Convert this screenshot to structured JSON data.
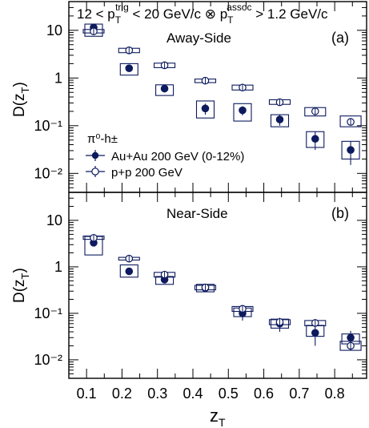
{
  "chart_data": [
    {
      "type": "scatter",
      "panel_label": "(a)",
      "title": "12 < p_T^trig < 20 GeV/c ⊗ p_T^assoc > 1.2 GeV/c",
      "annotation": "Away-Side",
      "xlabel": "z_T",
      "ylabel": "D(z_T)",
      "log_y": true,
      "ylim": [
        0.004,
        40
      ],
      "xlim": [
        0.05,
        0.89
      ],
      "legend_title": "π⁰-h±",
      "legend_placement": "lower-left",
      "series": [
        {
          "name": "Au+Au 200 GeV (0-12%)",
          "marker": "filled-circle",
          "color": "#0d1a5e",
          "x": [
            0.12,
            0.22,
            0.32,
            0.435,
            0.54,
            0.645,
            0.745,
            0.845
          ],
          "y": [
            11.5,
            1.6,
            0.6,
            0.23,
            0.21,
            0.135,
            0.053,
            0.031
          ],
          "err_low": [
            2.0,
            0.25,
            0.1,
            0.06,
            0.045,
            0.035,
            0.022,
            0.016
          ],
          "err_high": [
            2.0,
            0.25,
            0.1,
            0.06,
            0.045,
            0.035,
            0.022,
            0.016
          ],
          "sys_low": [
            7.5,
            1.15,
            0.43,
            0.145,
            0.125,
            0.095,
            0.035,
            0.02
          ],
          "sys_high": [
            13.5,
            2.0,
            0.72,
            0.33,
            0.29,
            0.17,
            0.075,
            0.047
          ]
        },
        {
          "name": "p+p 200 GeV",
          "marker": "open-circle",
          "color": "#0d1a5e",
          "x": [
            0.12,
            0.22,
            0.32,
            0.435,
            0.54,
            0.645,
            0.745,
            0.845
          ],
          "y": [
            9.5,
            3.8,
            1.85,
            0.88,
            0.63,
            0.31,
            0.2,
            0.12
          ],
          "err_low": [
            0.3,
            0.15,
            0.07,
            0.04,
            0.03,
            0.02,
            0.015,
            0.01
          ],
          "err_high": [
            0.3,
            0.15,
            0.07,
            0.04,
            0.03,
            0.02,
            0.015,
            0.01
          ],
          "sys_low": [
            8.8,
            3.4,
            1.65,
            0.8,
            0.56,
            0.28,
            0.16,
            0.095
          ],
          "sys_high": [
            10.4,
            4.2,
            2.05,
            0.95,
            0.71,
            0.35,
            0.24,
            0.16
          ]
        }
      ]
    },
    {
      "type": "scatter",
      "panel_label": "(b)",
      "annotation": "Near-Side",
      "xlabel": "z_T",
      "ylabel": "D(z_T)",
      "log_y": true,
      "ylim": [
        0.004,
        40
      ],
      "xlim": [
        0.05,
        0.89
      ],
      "series": [
        {
          "name": "Au+Au 200 GeV (0-12%)",
          "marker": "filled-circle",
          "color": "#0d1a5e",
          "x": [
            0.12,
            0.22,
            0.32,
            0.435,
            0.54,
            0.645,
            0.745,
            0.845
          ],
          "y": [
            3.3,
            0.8,
            0.53,
            0.35,
            0.1,
            0.06,
            0.038,
            0.03
          ],
          "err_low": [
            0.4,
            0.12,
            0.06,
            0.05,
            0.03,
            0.02,
            0.018,
            0.012
          ],
          "err_high": [
            0.4,
            0.12,
            0.06,
            0.05,
            0.03,
            0.02,
            0.018,
            0.012
          ],
          "sys_low": [
            1.8,
            0.6,
            0.42,
            0.29,
            0.085,
            0.048,
            0.032,
            0.022
          ],
          "sys_high": [
            4.5,
            1.1,
            0.62,
            0.42,
            0.13,
            0.075,
            0.055,
            0.036
          ]
        },
        {
          "name": "p+p 200 GeV",
          "marker": "open-circle",
          "color": "#0d1a5e",
          "x": [
            0.12,
            0.22,
            0.32,
            0.435,
            0.54,
            0.645,
            0.745,
            0.845
          ],
          "y": [
            4.2,
            1.5,
            0.68,
            0.36,
            0.125,
            0.065,
            0.062,
            0.02
          ],
          "err_low": [
            0.15,
            0.08,
            0.04,
            0.03,
            0.012,
            0.008,
            0.008,
            0.004
          ],
          "err_high": [
            0.15,
            0.08,
            0.04,
            0.03,
            0.012,
            0.008,
            0.008,
            0.004
          ],
          "sys_low": [
            3.9,
            1.4,
            0.6,
            0.32,
            0.11,
            0.057,
            0.054,
            0.016
          ],
          "sys_high": [
            4.6,
            1.6,
            0.76,
            0.4,
            0.14,
            0.073,
            0.07,
            0.025
          ]
        }
      ]
    }
  ],
  "x_tick_labels": [
    "0.1",
    "0.2",
    "0.3",
    "0.4",
    "0.5",
    "0.6",
    "0.7",
    "0.8"
  ],
  "x_tick_values": [
    0.1,
    0.2,
    0.3,
    0.4,
    0.5,
    0.6,
    0.7,
    0.8
  ],
  "y_tick_labels": [
    "10⁻²",
    "10⁻¹",
    "1",
    "10"
  ],
  "y_tick_values": [
    0.01,
    0.1,
    1,
    10
  ],
  "text": {
    "title_a": "12 < p",
    "title_b": "T",
    "title_c": "trig",
    "title_d": " < 20 GeV/c ⊗ p",
    "title_e": "T",
    "title_f": "assoc",
    "title_g": " > 1.2 GeV/c",
    "ylabel_main": "D(z",
    "ylabel_sub": "T",
    "ylabel_close": ")",
    "xlabel_main": "z",
    "xlabel_sub": "T",
    "legend_title": "π⁰-h±",
    "legend_auau": "Au+Au 200 GeV (0-12%)",
    "legend_pp": "p+p 200 GeV",
    "label_a": "(a)",
    "label_b": "(b)",
    "away": "Away-Side",
    "near": "Near-Side"
  }
}
